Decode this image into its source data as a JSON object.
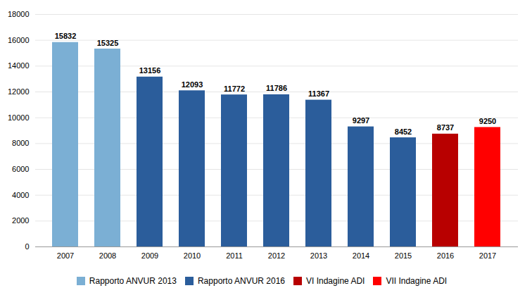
{
  "chart_data": {
    "type": "bar",
    "categories": [
      "2007",
      "2008",
      "2009",
      "2010",
      "2011",
      "2012",
      "2013",
      "2014",
      "2015",
      "2016",
      "2017"
    ],
    "series": [
      {
        "name": "Rapporto ANVUR 2013",
        "color": "#7BAFD4",
        "values": [
          15832,
          15325,
          null,
          null,
          null,
          null,
          null,
          null,
          null,
          null,
          null
        ]
      },
      {
        "name": "Rapporto ANVUR 2016",
        "color": "#2B5D9B",
        "values": [
          null,
          null,
          13156,
          12093,
          11772,
          11786,
          11367,
          9297,
          8452,
          null,
          null
        ]
      },
      {
        "name": "VI Indagine ADI",
        "color": "#B80000",
        "values": [
          null,
          null,
          null,
          null,
          null,
          null,
          null,
          null,
          null,
          8737,
          null
        ]
      },
      {
        "name": "VII Indagine ADI",
        "color": "#FF0000",
        "values": [
          null,
          null,
          null,
          null,
          null,
          null,
          null,
          null,
          null,
          null,
          9250
        ]
      }
    ],
    "ylim": [
      0,
      18000
    ],
    "yticks": [
      0,
      2000,
      4000,
      6000,
      8000,
      10000,
      12000,
      14000,
      16000,
      18000
    ],
    "grid": true,
    "data_labels": true,
    "legend": "bottom"
  }
}
